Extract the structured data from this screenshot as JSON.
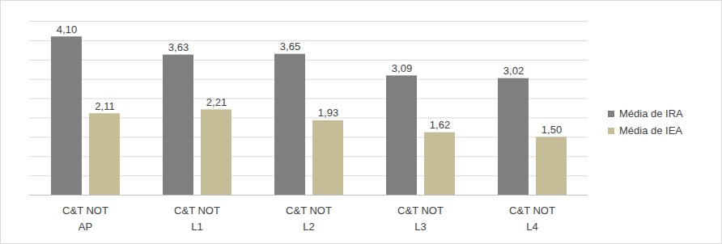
{
  "chart_data": {
    "type": "bar",
    "categories": [
      [
        "C&T NOT",
        "AP"
      ],
      [
        "C&T NOT",
        "L1"
      ],
      [
        "C&T NOT",
        "L2"
      ],
      [
        "C&T NOT",
        "L3"
      ],
      [
        "C&T NOT",
        "L4"
      ]
    ],
    "series": [
      {
        "name": "Média de IRA",
        "color": "#7f7f7f",
        "values": [
          4.1,
          3.63,
          3.65,
          3.09,
          3.02
        ],
        "value_labels": [
          "4,10",
          "3,63",
          "3,65",
          "3,09",
          "3,02"
        ]
      },
      {
        "name": "Média de IEA",
        "color": "#c4bd97",
        "values": [
          2.11,
          2.21,
          1.93,
          1.62,
          1.5
        ],
        "value_labels": [
          "2,11",
          "2,21",
          "1,93",
          "1,62",
          "1,50"
        ]
      }
    ],
    "ylim": [
      0,
      4.5
    ],
    "yticks": [
      0,
      0.5,
      1,
      1.5,
      2,
      2.5,
      3,
      3.5,
      4,
      4.5
    ],
    "grid": true,
    "data_labels": true,
    "tick_labels": "x",
    "legend": "right"
  }
}
